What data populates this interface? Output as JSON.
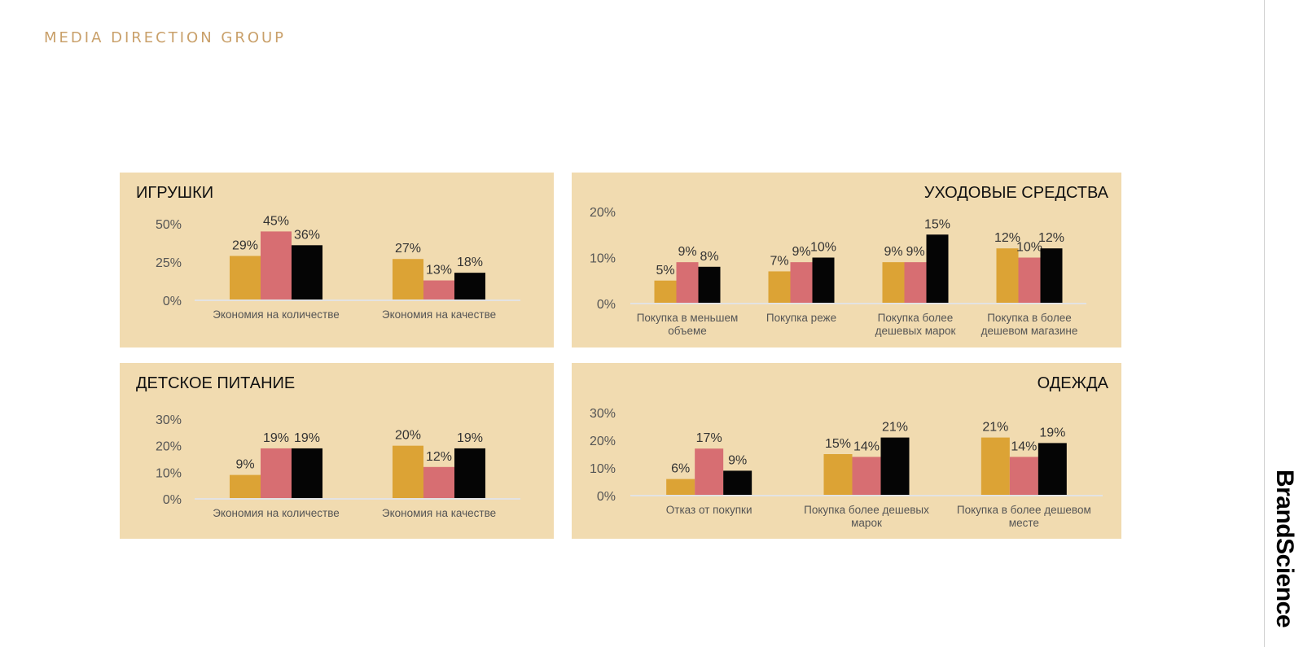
{
  "header": {
    "brand": "MEDIA DIRECTION GROUP"
  },
  "side_logo": "BrandScience",
  "colors": {
    "series1": "#dca335",
    "series2": "#d76e72",
    "series3": "#050505",
    "panel_bg": "#f1dbb0",
    "axis": "#e3e3e3",
    "text": "#555555"
  },
  "chart_data": [
    {
      "id": "toys",
      "type": "bar",
      "title": "ИГРУШКИ",
      "categories": [
        [
          "Экономия на количестве"
        ],
        [
          "Экономия на качестве"
        ]
      ],
      "series": [
        {
          "values": [
            29,
            27
          ],
          "labels": [
            "29%",
            "27%"
          ]
        },
        {
          "values": [
            45,
            13
          ],
          "labels": [
            "45%",
            "13%"
          ]
        },
        {
          "values": [
            36,
            18
          ],
          "labels": [
            "36%",
            "18%"
          ]
        }
      ],
      "ylim": [
        0,
        50
      ],
      "yticks": [
        0,
        25,
        50
      ],
      "ytick_labels": [
        "0%",
        "25%",
        "50%"
      ]
    },
    {
      "id": "care",
      "type": "bar",
      "title": "УХОДОВЫЕ СРЕДСТВА",
      "categories": [
        [
          "Покупка в меньшем",
          "объеме"
        ],
        [
          "Покупка реже"
        ],
        [
          "Покупка более",
          "дешевых марок"
        ],
        [
          "Покупка в более",
          "дешевом магазине"
        ]
      ],
      "series": [
        {
          "values": [
            5,
            7,
            9,
            12
          ],
          "labels": [
            "5%",
            "7%",
            "9%",
            "12%"
          ]
        },
        {
          "values": [
            9,
            9,
            9,
            10
          ],
          "labels": [
            "9%",
            "9%",
            "9%",
            "10%"
          ]
        },
        {
          "values": [
            8,
            10,
            15,
            12
          ],
          "labels": [
            "8%",
            "10%",
            "15%",
            "12%"
          ]
        }
      ],
      "ylim": [
        0,
        20
      ],
      "yticks": [
        0,
        10,
        20
      ],
      "ytick_labels": [
        "0%",
        "10%",
        "20%"
      ]
    },
    {
      "id": "baby-food",
      "type": "bar",
      "title": "ДЕТСКОЕ ПИТАНИЕ",
      "categories": [
        [
          "Экономия на количестве"
        ],
        [
          "Экономия на качестве"
        ]
      ],
      "series": [
        {
          "values": [
            9,
            20
          ],
          "labels": [
            "9%",
            "20%"
          ]
        },
        {
          "values": [
            19,
            12
          ],
          "labels": [
            "19%",
            "12%"
          ]
        },
        {
          "values": [
            19,
            19
          ],
          "labels": [
            "19%",
            "19%"
          ]
        }
      ],
      "ylim": [
        0,
        30
      ],
      "yticks": [
        0,
        10,
        20,
        30
      ],
      "ytick_labels": [
        "0%",
        "10%",
        "20%",
        "30%"
      ]
    },
    {
      "id": "clothes",
      "type": "bar",
      "title": "ОДЕЖДА",
      "categories": [
        [
          "Отказ от покупки"
        ],
        [
          "Покупка более дешевых",
          "марок"
        ],
        [
          "Покупка в более дешевом",
          "месте"
        ]
      ],
      "series": [
        {
          "values": [
            6,
            15,
            21
          ],
          "labels": [
            "6%",
            "15%",
            "21%"
          ]
        },
        {
          "values": [
            17,
            14,
            14
          ],
          "labels": [
            "17%",
            "14%",
            "14%"
          ]
        },
        {
          "values": [
            9,
            21,
            19
          ],
          "labels": [
            "9%",
            "21%",
            "19%"
          ]
        }
      ],
      "ylim": [
        0,
        30
      ],
      "yticks": [
        0,
        10,
        20,
        30
      ],
      "ytick_labels": [
        "0%",
        "10%",
        "20%",
        "30%"
      ]
    }
  ]
}
